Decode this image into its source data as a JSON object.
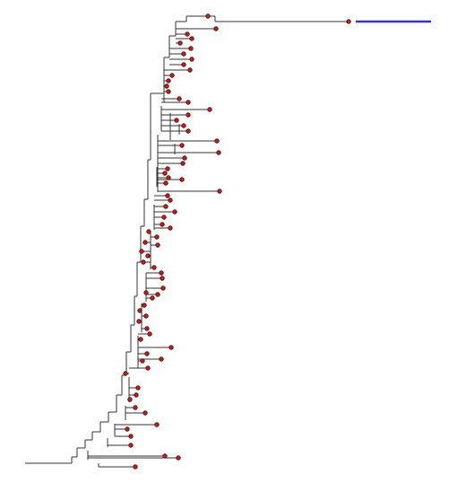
{
  "colors": {
    "background": "#ffffff",
    "branch": "#333333",
    "node_fill": "#b22222",
    "node_stroke": "#5a0f0f",
    "highlight": "#3333dd"
  },
  "tree": {
    "leaf_count": 72,
    "highlighted_branch": "longest-branch"
  }
}
